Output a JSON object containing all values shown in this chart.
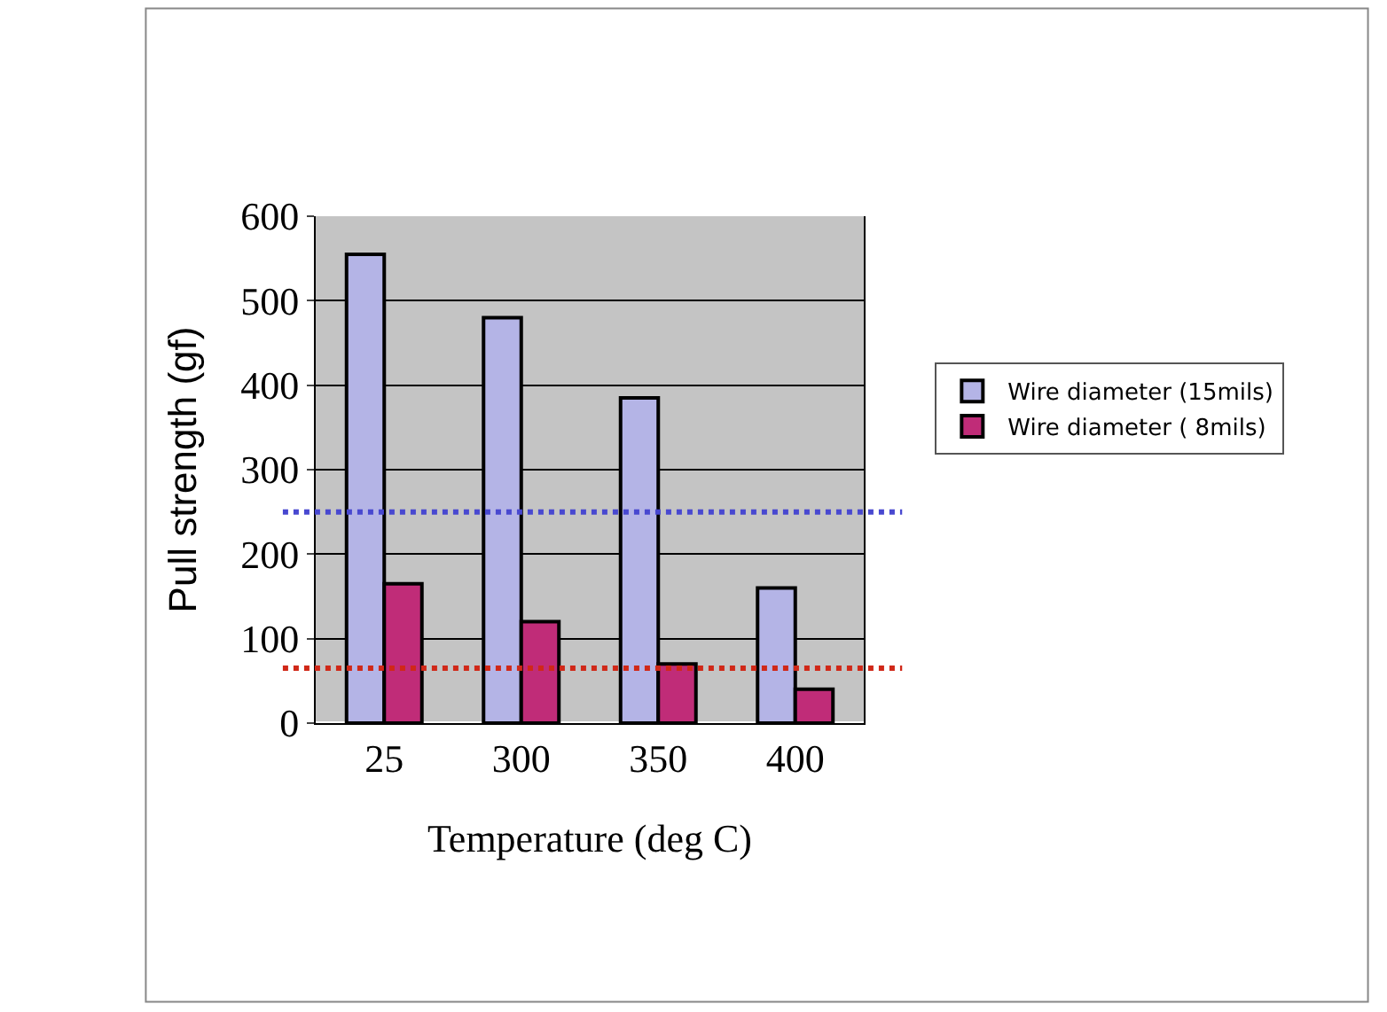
{
  "chart_data": {
    "type": "bar",
    "xlabel": "Temperature (deg C)",
    "ylabel": "Pull strength (gf)",
    "categories": [
      "25",
      "300",
      "350",
      "400"
    ],
    "series": [
      {
        "name": "Wire diameter (15mils)",
        "color": "#b4b4e6",
        "values": [
          555,
          480,
          385,
          160
        ]
      },
      {
        "name": "Wire diameter ( 8mils)",
        "color": "#c02c78",
        "values": [
          165,
          120,
          70,
          40
        ]
      }
    ],
    "ylim": [
      0,
      600
    ],
    "yticks": [
      0,
      100,
      200,
      300,
      400,
      500,
      600
    ],
    "grid": "y",
    "legend": "right",
    "ref_lines": [
      {
        "axis": "y",
        "value": 250,
        "color": "#4848d0",
        "line_style": "dotted"
      },
      {
        "axis": "y",
        "value": 65,
        "color": "#d02818",
        "line_style": "dotted"
      }
    ]
  }
}
